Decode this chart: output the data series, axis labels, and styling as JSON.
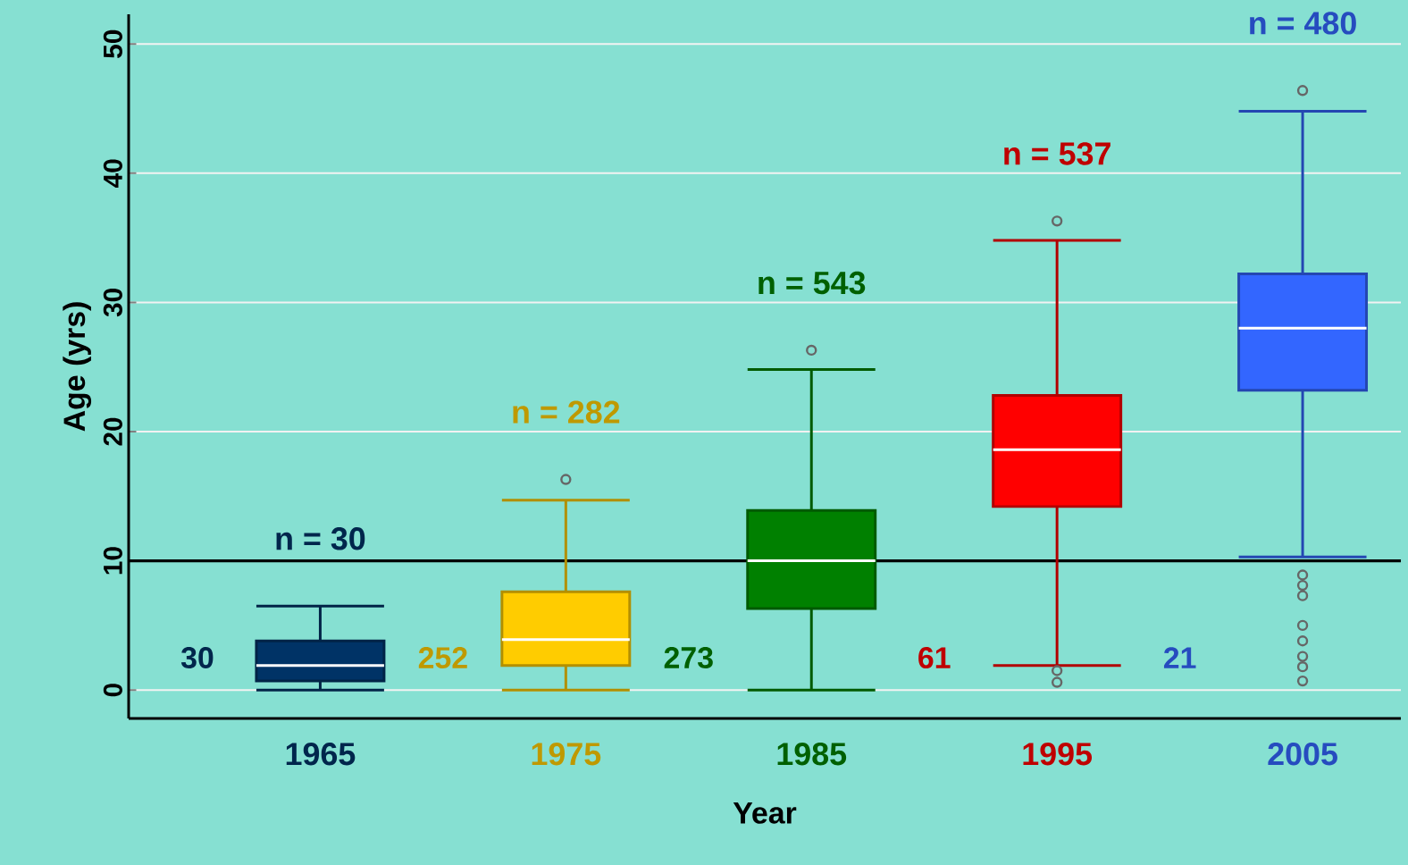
{
  "chart_data": {
    "type": "box",
    "xlabel": "Year",
    "ylabel": "Age (yrs)",
    "categories": [
      "1965",
      "1975",
      "1985",
      "1995",
      "2005"
    ],
    "colors": [
      "#003366",
      "#ffcc00",
      "#008000",
      "#ff0000",
      "#3366ff"
    ],
    "boxes": [
      {
        "low": 0,
        "q1": 0.7,
        "median": 1.9,
        "q3": 3.8,
        "high": 6.5
      },
      {
        "low": 0,
        "q1": 1.9,
        "median": 3.9,
        "q3": 7.6,
        "high": 14.7,
        "outliers": [
          16.3
        ]
      },
      {
        "low": 0,
        "q1": 6.3,
        "median": 10,
        "q3": 13.9,
        "high": 24.8,
        "outliers": [
          26.3
        ]
      },
      {
        "low": 1.9,
        "q1": 14.2,
        "median": 18.6,
        "q3": 22.8,
        "high": 34.8,
        "outliers": [
          36.3,
          1.5,
          0.6
        ]
      },
      {
        "low": 10.3,
        "q1": 23.2,
        "median": 28,
        "q3": 32.2,
        "high": 44.8,
        "outliers": [
          46.4,
          8.9,
          8.1,
          7.3,
          5.0,
          3.8,
          2.6,
          1.8,
          0.7
        ]
      }
    ],
    "ylim": [
      -2.2,
      52.3
    ],
    "yticks": [
      0,
      10,
      20,
      30,
      40,
      50
    ],
    "grid": "y",
    "ref_lines": [
      {
        "axis": "y",
        "value": 10,
        "color": "#000000"
      }
    ],
    "annotations": [
      "n = 30",
      "n = 282",
      "n = 543",
      "n = 537",
      "n = 480",
      "30",
      "252",
      "273",
      "61",
      "21"
    ]
  }
}
